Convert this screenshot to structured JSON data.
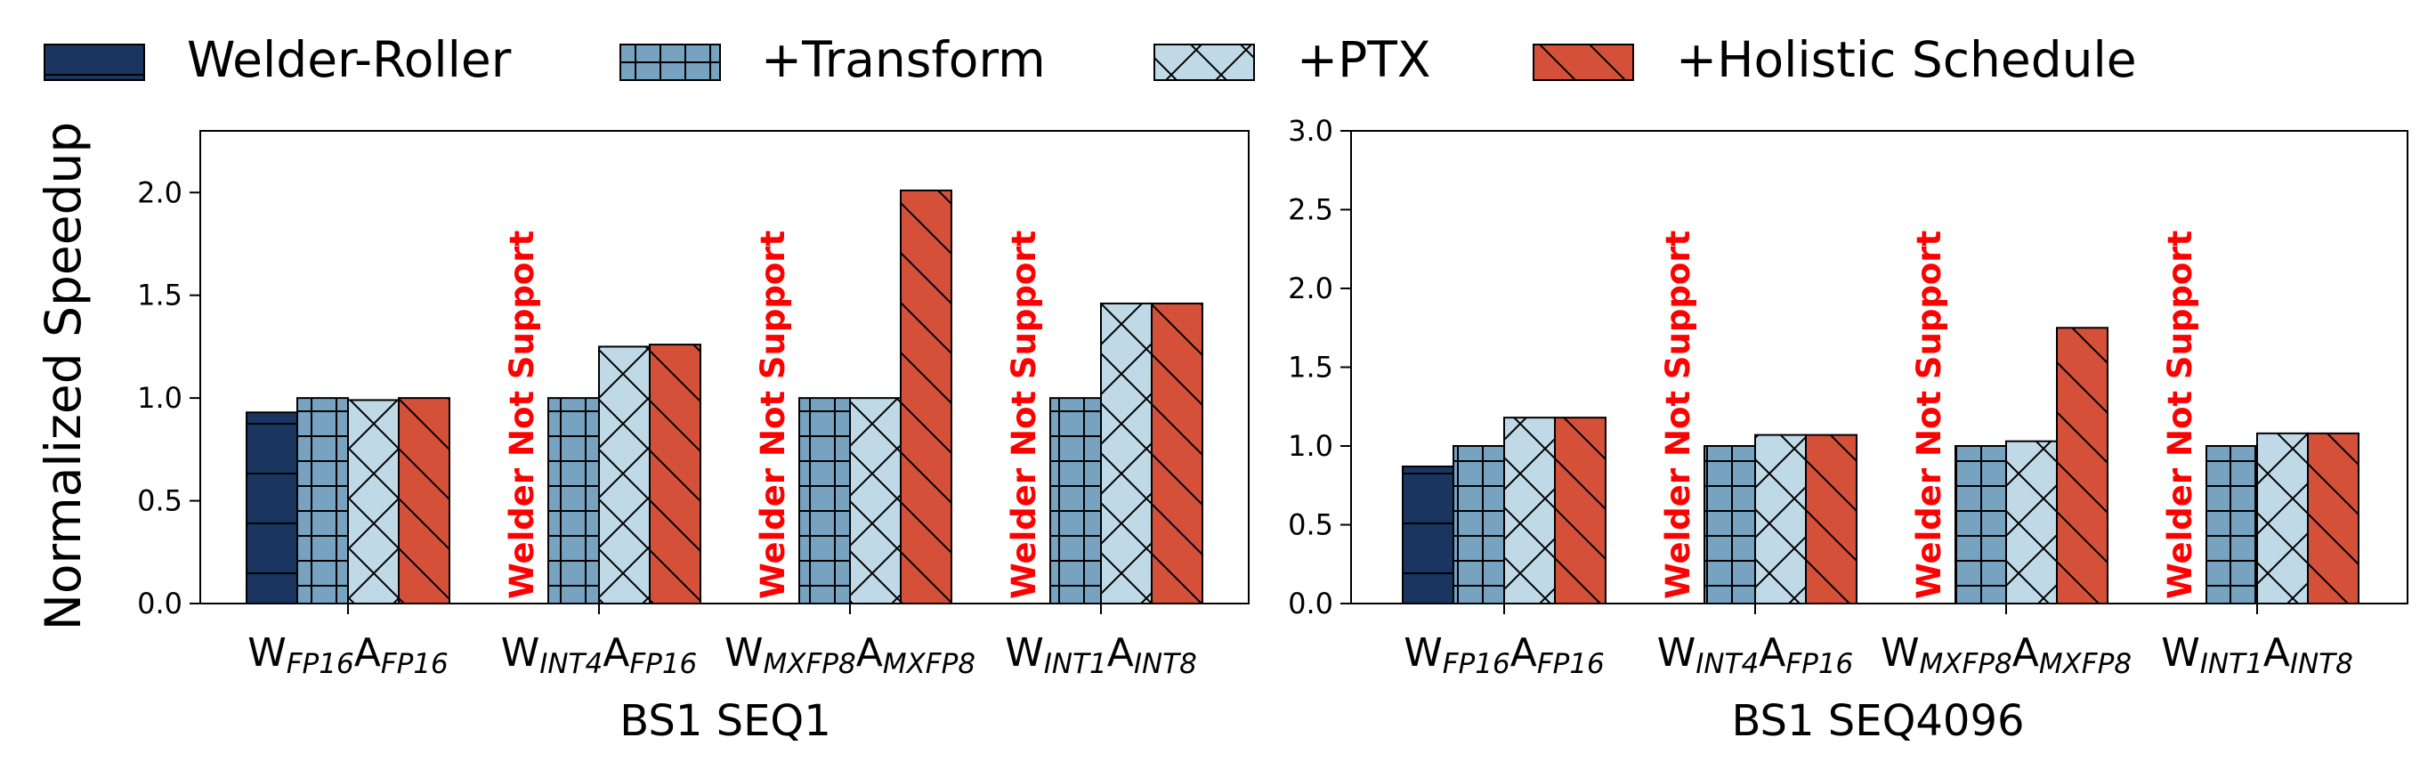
{
  "legend": [
    {
      "label": "Welder-Roller",
      "color": "#1a3660",
      "hatch": "horizontal"
    },
    {
      "label": "+Transform",
      "color": "#77a2c0",
      "hatch": "grid"
    },
    {
      "label": "+PTX",
      "color": "#c0d9e6",
      "hatch": "cross"
    },
    {
      "label": "+Holistic Schedule",
      "color": "#d55039",
      "hatch": "backslash"
    }
  ],
  "not_supported_label": "Welder Not Support",
  "chart_data": [
    {
      "type": "bar",
      "title": "BS1 SEQ1",
      "xlabel": "BS1 SEQ1",
      "ylabel": "Normalized Speedup",
      "ylim": [
        0,
        2.3
      ],
      "yticks": [
        "0.0",
        "0.5",
        "1.0",
        "1.5",
        "2.0"
      ],
      "categories": [
        {
          "w": "W",
          "wsub": "FP16",
          "a": "A",
          "asub": "FP16"
        },
        {
          "w": "W",
          "wsub": "INT4",
          "a": "A",
          "asub": "FP16"
        },
        {
          "w": "W",
          "wsub": "MXFP8",
          "a": "A",
          "asub": "MXFP8"
        },
        {
          "w": "W",
          "wsub": "INT1",
          "a": "A",
          "asub": "INT8"
        }
      ],
      "series": [
        {
          "name": "Welder-Roller",
          "values": [
            0.93,
            null,
            null,
            null
          ]
        },
        {
          "name": "+Transform",
          "values": [
            1.0,
            1.0,
            1.0,
            1.0
          ]
        },
        {
          "name": "+PTX",
          "values": [
            0.99,
            1.25,
            1.0,
            1.46
          ]
        },
        {
          "name": "+Holistic Schedule",
          "values": [
            1.0,
            1.26,
            2.01,
            1.46
          ]
        }
      ]
    },
    {
      "type": "bar",
      "title": "BS1 SEQ4096",
      "xlabel": "BS1 SEQ4096",
      "ylabel": "",
      "ylim": [
        0,
        3.0
      ],
      "yticks": [
        "0.0",
        "0.5",
        "1.0",
        "1.5",
        "2.0",
        "2.5",
        "3.0"
      ],
      "categories": [
        {
          "w": "W",
          "wsub": "FP16",
          "a": "A",
          "asub": "FP16"
        },
        {
          "w": "W",
          "wsub": "INT4",
          "a": "A",
          "asub": "FP16"
        },
        {
          "w": "W",
          "wsub": "MXFP8",
          "a": "A",
          "asub": "MXFP8"
        },
        {
          "w": "W",
          "wsub": "INT1",
          "a": "A",
          "asub": "INT8"
        }
      ],
      "series": [
        {
          "name": "Welder-Roller",
          "values": [
            0.87,
            null,
            null,
            null
          ]
        },
        {
          "name": "+Transform",
          "values": [
            1.0,
            1.0,
            1.0,
            1.0
          ]
        },
        {
          "name": "+PTX",
          "values": [
            1.18,
            1.07,
            1.03,
            1.08
          ]
        },
        {
          "name": "+Holistic Schedule",
          "values": [
            1.18,
            1.07,
            1.75,
            1.08
          ]
        }
      ]
    }
  ]
}
